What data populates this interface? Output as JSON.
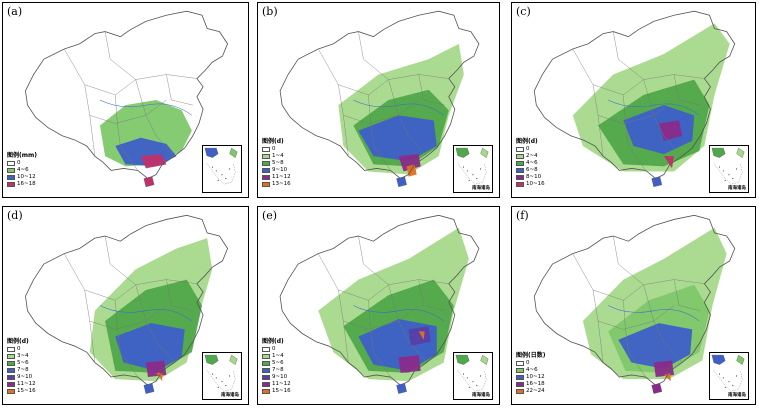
{
  "panels": [
    {
      "label": "(a)",
      "legend_title": "图例(mm)",
      "items": [
        "0",
        "4~6",
        "10~12",
        "16~18"
      ],
      "colors": [
        "#ffffff",
        "#7ec86a",
        "#3e5fc8",
        "#c0306a"
      ],
      "inset_caption": ""
    },
    {
      "label": "(b)",
      "legend_title": "图例(d)",
      "items": [
        "0",
        "1~4",
        "5~8",
        "9~10",
        "11~12",
        "13~16"
      ],
      "colors": [
        "#ffffff",
        "#a6d98a",
        "#4fa84a",
        "#3e5fc8",
        "#8a2a8a",
        "#e07020"
      ],
      "inset_caption": "南海诸岛"
    },
    {
      "label": "(c)",
      "legend_title": "图例(d)",
      "items": [
        "0",
        "2~4",
        "4~6",
        "6~8",
        "8~10",
        "10~16"
      ],
      "colors": [
        "#ffffff",
        "#a6d98a",
        "#4fa84a",
        "#3e5fc8",
        "#8a2a8a",
        "#c0306a"
      ],
      "inset_caption": "南海诸岛"
    },
    {
      "label": "(d)",
      "legend_title": "图例(d)",
      "items": [
        "0",
        "3~4",
        "5~6",
        "7~8",
        "9~10",
        "11~12",
        "15~16"
      ],
      "colors": [
        "#ffffff",
        "#a6d98a",
        "#4fa84a",
        "#3e5fc8",
        "#5a3ea8",
        "#8a2a8a",
        "#e07020"
      ],
      "inset_caption": "南海诸岛"
    },
    {
      "label": "(e)",
      "legend_title": "图例(d)",
      "items": [
        "0",
        "1~4",
        "5~6",
        "7~8",
        "9~10",
        "11~12",
        "15~16"
      ],
      "colors": [
        "#ffffff",
        "#a6d98a",
        "#4fa84a",
        "#3e5fc8",
        "#5a3ea8",
        "#8a2a8a",
        "#e07020"
      ],
      "inset_caption": "南海诸岛"
    },
    {
      "label": "(f)",
      "legend_title": "图例(日数)",
      "items": [
        "0",
        "4~6",
        "10~12",
        "16~18",
        "22~24"
      ],
      "colors": [
        "#ffffff",
        "#7ec86a",
        "#3e5fc8",
        "#8a2a8a",
        "#e07020"
      ],
      "inset_caption": "南海诸岛"
    }
  ]
}
